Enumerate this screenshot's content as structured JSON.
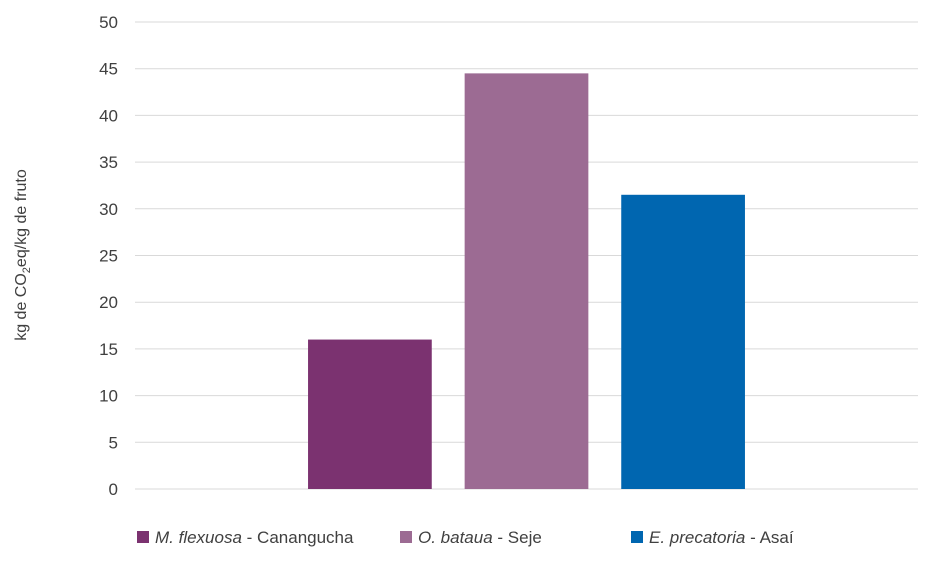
{
  "chart_data": {
    "type": "bar",
    "ylabel": {
      "prefix": "kg de CO",
      "subscript": "2",
      "suffix": "eq/kg de fruto"
    },
    "ylim": [
      0,
      50
    ],
    "yticks": [
      0,
      5,
      10,
      15,
      20,
      25,
      30,
      35,
      40,
      45,
      50
    ],
    "grid": true,
    "legend_position": "bottom",
    "series": [
      {
        "species": "M. flexuosa",
        "common": "Canangucha",
        "value": 16,
        "color": "#7B3270"
      },
      {
        "species": "O. bataua",
        "common": "Seje",
        "value": 44.5,
        "color": "#9C6B93"
      },
      {
        "species": "E. precatoria",
        "common": "Asaí",
        "value": 31.5,
        "color": "#0066B0"
      }
    ]
  }
}
